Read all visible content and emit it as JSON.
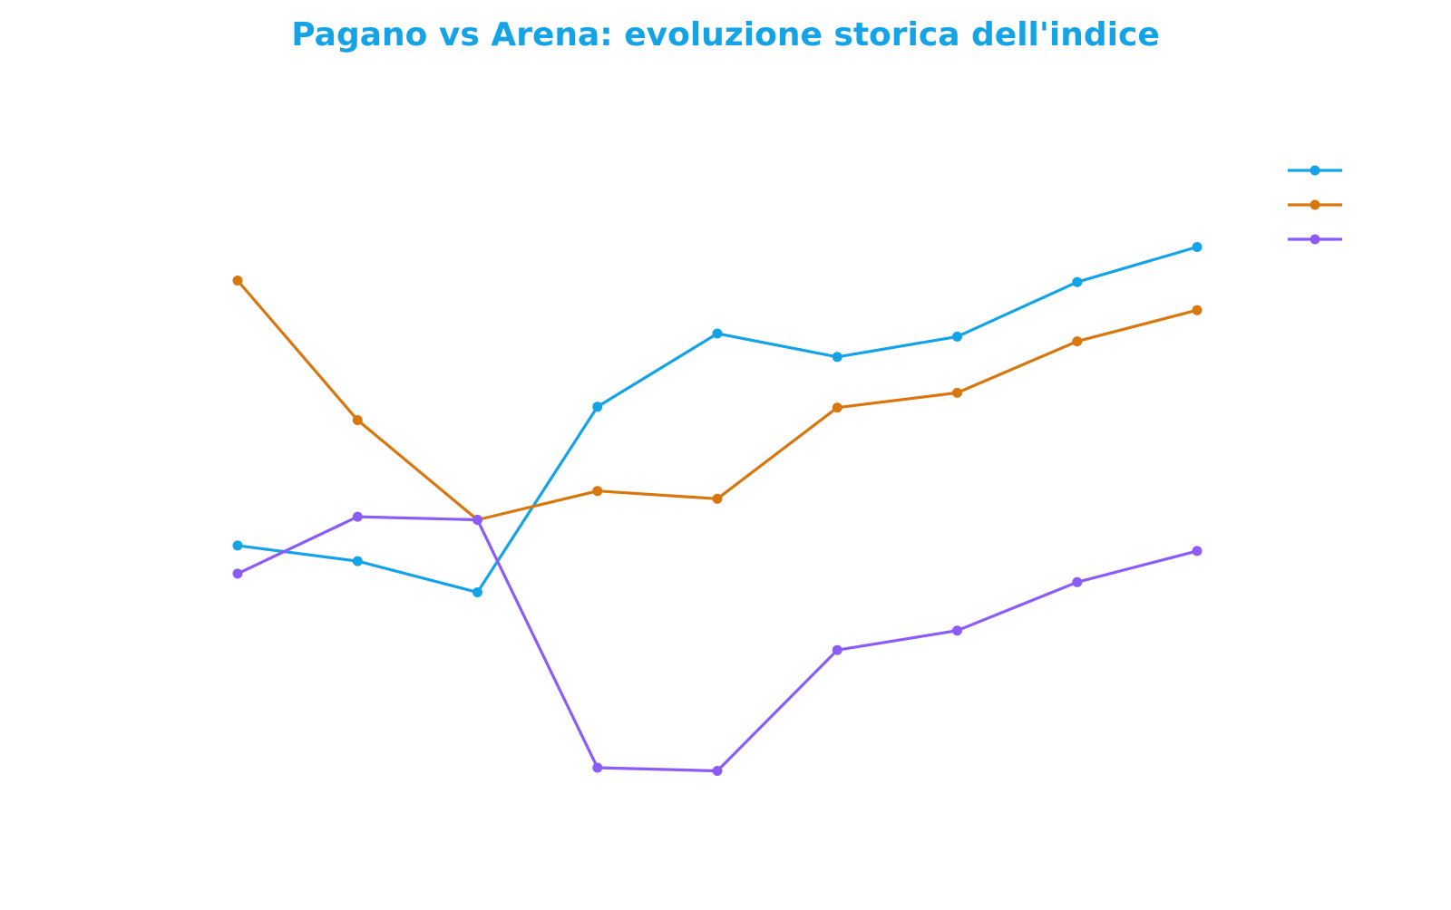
{
  "chart_data": {
    "type": "line",
    "title": "Pagano vs Arena: evoluzione storica dell'indice",
    "title_color": "#14a3e6",
    "xlabel": "",
    "ylabel": "",
    "grid": false,
    "axes_visible": false,
    "legend_position": "top-right",
    "x": [
      1,
      2,
      3,
      4,
      5,
      6,
      7,
      8,
      9
    ],
    "ylim": [
      0,
      1000
    ],
    "series": [
      {
        "name": "",
        "color": "#14a3e6",
        "values": [
          428,
          408,
          368,
          606,
          700,
          670,
          696,
          766,
          811
        ]
      },
      {
        "name": "",
        "color": "#d9770f",
        "values": [
          768,
          589,
          461,
          498,
          488,
          605,
          624,
          690,
          730
        ]
      },
      {
        "name": "",
        "color": "#8b5cf6",
        "values": [
          392,
          465,
          461,
          143,
          139,
          294,
          319,
          381,
          421
        ]
      }
    ]
  }
}
